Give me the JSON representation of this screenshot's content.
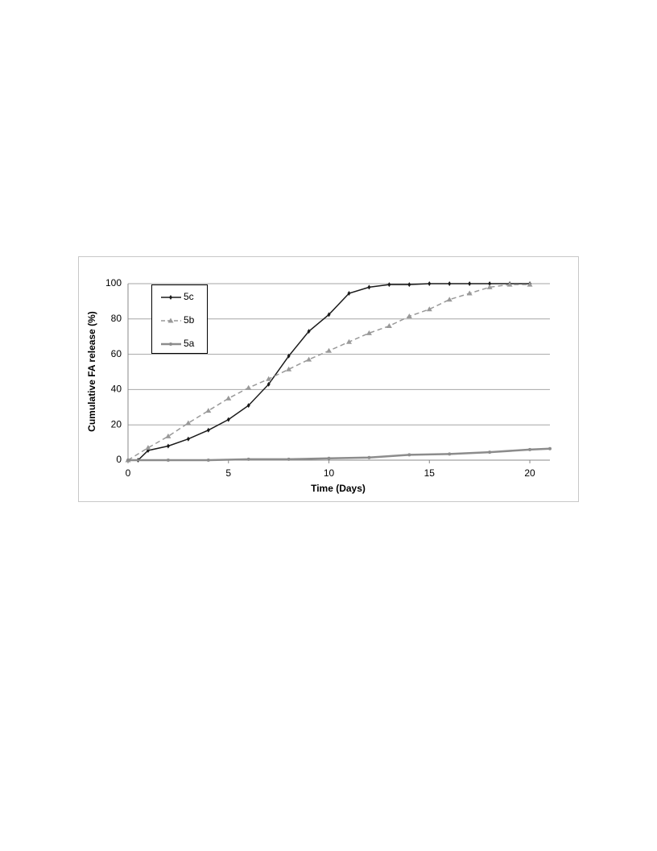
{
  "chart_data": {
    "type": "line",
    "x_label": "Time (Days)",
    "y_label": "Cumulative FA release (%)",
    "xlim": [
      0,
      21
    ],
    "xticks": [
      0,
      5,
      10,
      15,
      20
    ],
    "ylim": [
      0,
      100
    ],
    "yticks": [
      0,
      20,
      40,
      60,
      80,
      100
    ],
    "grid": true,
    "legend": "upper left",
    "series": [
      {
        "name": "5c",
        "color": "#1a1a1a",
        "dash": false,
        "marker": "diamond",
        "x": [
          0,
          0.5,
          1,
          2,
          3,
          4,
          5,
          6,
          7,
          8,
          9,
          10,
          11,
          12,
          13,
          14,
          15,
          16,
          17,
          18,
          19,
          20
        ],
        "values": [
          0,
          0,
          5.5,
          8,
          12,
          17,
          23,
          31,
          43,
          59,
          73,
          82.5,
          94.5,
          98,
          99.5,
          99.5,
          100,
          100,
          100,
          100,
          100,
          100
        ]
      },
      {
        "name": "5b",
        "color": "#999999",
        "dash": true,
        "marker": "triangle",
        "x": [
          0,
          1,
          2,
          3,
          4,
          5,
          6,
          7,
          8,
          9,
          10,
          11,
          12,
          13,
          14,
          15,
          16,
          17,
          18,
          19,
          20
        ],
        "values": [
          0,
          7,
          13.5,
          21,
          28,
          35,
          41,
          46,
          51.5,
          57,
          62,
          67,
          72,
          76,
          81.5,
          85.5,
          91,
          94.5,
          98,
          99.5,
          99.5
        ]
      },
      {
        "name": "5a",
        "color": "#8c8c8c",
        "dash": false,
        "marker": "circle",
        "x": [
          0,
          2,
          4,
          6,
          8,
          10,
          12,
          14,
          16,
          18,
          20,
          21
        ],
        "values": [
          0,
          0,
          0,
          0.5,
          0.5,
          1,
          1.5,
          3,
          3.5,
          4.5,
          6,
          6.5
        ]
      }
    ]
  }
}
